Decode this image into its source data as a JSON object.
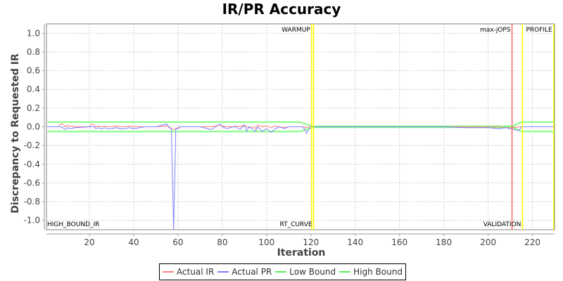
{
  "chart_data": {
    "type": "line",
    "title": "IR/PR Accuracy",
    "xlabel": "Iteration",
    "ylabel": "Discrepancy to Requested IR",
    "xlim": [
      0.6,
      230
    ],
    "ylim": [
      -1.1,
      1.1
    ],
    "x_ticks": [
      20,
      40,
      60,
      80,
      100,
      120,
      140,
      160,
      180,
      200,
      220
    ],
    "y_ticks": [
      "1.0",
      "0.8",
      "0.6",
      "0.4",
      "0.2",
      "0.0",
      "-0.2",
      "-0.4",
      "-0.6",
      "-0.8",
      "-1.0"
    ],
    "grid": true,
    "legend_position": "bottom",
    "series": [
      {
        "name": "Actual IR",
        "color": "#ff8080",
        "x": [
          1,
          6,
          7,
          8,
          9,
          10,
          11,
          12,
          13,
          14,
          20,
          21,
          22,
          23,
          24,
          25,
          26,
          27,
          28,
          30,
          32,
          34,
          36,
          38,
          40,
          45,
          50,
          55,
          56,
          57,
          58,
          59,
          60,
          61,
          62,
          65,
          70,
          75,
          79,
          80,
          82,
          85,
          86,
          88,
          90,
          91,
          92,
          94,
          95,
          96,
          98,
          100,
          102,
          104,
          106,
          108,
          110,
          112,
          114,
          116,
          117,
          118,
          119,
          120,
          121,
          130,
          140,
          150,
          160,
          170,
          180,
          190,
          200,
          205,
          208,
          210,
          212,
          214,
          215,
          216,
          220,
          225,
          230
        ],
        "y": [
          0,
          0,
          0.03,
          0.03,
          0.0,
          0.02,
          0.0,
          0.01,
          0.0,
          0.0,
          0.0,
          0.03,
          0.02,
          0.0,
          0.01,
          0.0,
          0.0,
          0.01,
          0.0,
          0.0,
          0.01,
          0.0,
          0.0,
          0.01,
          0.0,
          0.0,
          0.0,
          0.01,
          0.0,
          -0.02,
          -0.03,
          -0.02,
          -0.01,
          0.0,
          0.0,
          0.0,
          0.0,
          0.0,
          0.02,
          0.01,
          0.0,
          0.0,
          0.01,
          0.0,
          0.02,
          0.0,
          -0.01,
          0.0,
          -0.02,
          0.02,
          0.0,
          0.01,
          -0.01,
          0.01,
          0.0,
          -0.01,
          0.0,
          0.0,
          0.0,
          0.0,
          0.0,
          -0.01,
          0.0,
          0.0,
          0.0,
          0.0,
          0.0,
          0.0,
          0.0,
          0.0,
          0.0,
          0.0,
          0.0,
          0.0,
          -0.01,
          -0.01,
          -0.01,
          0.0,
          0.0,
          0.0,
          0.0,
          0.0,
          0.0
        ]
      },
      {
        "name": "Actual PR",
        "color": "#8080ff",
        "x": [
          1,
          6,
          7,
          8,
          9,
          10,
          11,
          12,
          13,
          14,
          20,
          21,
          22,
          23,
          24,
          25,
          26,
          27,
          28,
          30,
          32,
          34,
          36,
          38,
          40,
          45,
          50,
          55,
          56,
          57,
          58,
          59,
          60,
          61,
          62,
          65,
          70,
          75,
          79,
          80,
          82,
          85,
          86,
          88,
          90,
          91,
          92,
          94,
          95,
          96,
          98,
          100,
          102,
          104,
          106,
          108,
          110,
          112,
          114,
          116,
          117,
          118,
          119,
          120,
          121,
          130,
          140,
          150,
          160,
          170,
          180,
          190,
          200,
          205,
          208,
          210,
          212,
          214,
          215,
          216,
          220,
          225,
          230
        ],
        "y": [
          0,
          0,
          0.0,
          -0.01,
          -0.03,
          -0.01,
          -0.02,
          -0.02,
          -0.01,
          -0.01,
          0.0,
          0.0,
          0.0,
          -0.02,
          -0.01,
          -0.02,
          -0.02,
          -0.01,
          -0.02,
          -0.02,
          -0.01,
          -0.02,
          -0.02,
          -0.01,
          -0.02,
          0.0,
          0.0,
          0.03,
          -0.01,
          -0.02,
          -1.1,
          -0.02,
          -0.02,
          0.0,
          0.0,
          0.0,
          0.0,
          -0.03,
          0.03,
          0.0,
          -0.02,
          0.0,
          0.0,
          -0.03,
          0.02,
          -0.05,
          0.0,
          -0.03,
          -0.05,
          0.0,
          -0.05,
          -0.02,
          -0.06,
          -0.02,
          0.0,
          -0.02,
          0.0,
          0.0,
          0.0,
          0.0,
          -0.02,
          -0.07,
          -0.03,
          0.0,
          0.0,
          0.0,
          0.0,
          0.0,
          0.0,
          0.0,
          0.0,
          -0.01,
          -0.01,
          -0.02,
          -0.01,
          -0.02,
          -0.03,
          -0.04,
          0.0,
          0.0,
          0.0,
          0.0,
          0.0
        ]
      },
      {
        "name": "Low Bound",
        "color": "#80ff80",
        "x": [
          1,
          115,
          121,
          211,
          215,
          230
        ],
        "y": [
          -0.05,
          -0.05,
          -0.005,
          -0.005,
          -0.05,
          -0.05
        ]
      },
      {
        "name": "High Bound",
        "color": "#80ff80",
        "x": [
          1,
          115,
          121,
          211,
          215,
          230
        ],
        "y": [
          0.05,
          0.05,
          0.005,
          0.005,
          0.05,
          0.05
        ]
      }
    ],
    "markers": [
      {
        "label": "WARMUP",
        "x": 120.3,
        "color": "#ffff00",
        "label_pos": "top"
      },
      {
        "label": "RT_CURVE",
        "x": 121.2,
        "color": "#ffff00",
        "label_pos": "bottom"
      },
      {
        "label": "max-jOPS",
        "x": 210.8,
        "color": "#ff6060",
        "label_pos": "top"
      },
      {
        "label": "VALIDATION",
        "x": 215.5,
        "color": "#ffff00",
        "label_pos": "bottom"
      },
      {
        "label": "PROFILE",
        "x": 229.6,
        "color": "#ffff00",
        "label_pos": "top"
      },
      {
        "label": "HIGH_BOUND_IR",
        "x": 0.6,
        "color": "#808040",
        "label_pos": "bottom"
      }
    ]
  },
  "legend": {
    "items": [
      {
        "label": "Actual IR",
        "color": "#ff8080"
      },
      {
        "label": "Actual PR",
        "color": "#8080ff"
      },
      {
        "label": "Low Bound",
        "color": "#55ee55"
      },
      {
        "label": "High Bound",
        "color": "#55ee55"
      }
    ]
  }
}
